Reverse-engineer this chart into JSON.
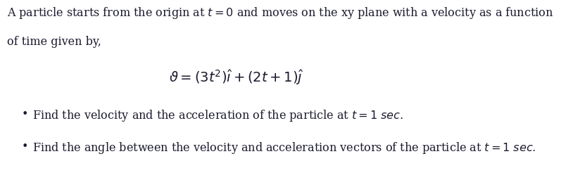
{
  "background_color": "#ffffff",
  "figsize": [
    8.21,
    2.56
  ],
  "dpi": 100,
  "text_color": "#1a1a2e",
  "font_size_para": 11.5,
  "font_size_eq": 14,
  "font_size_bullet": 11.5,
  "para_line1": "A particle starts from the origin at $t = 0$ and moves on the xy plane with a velocity as a function",
  "para_line2": "of time given by,",
  "bullet1": "Find the velocity and the acceleration of the particle at $t = 1$ $\\it{sec}.$",
  "bullet2": "Find the angle between the velocity and acceleration vectors of the particle at $t = 1$ $\\it{sec}.$"
}
